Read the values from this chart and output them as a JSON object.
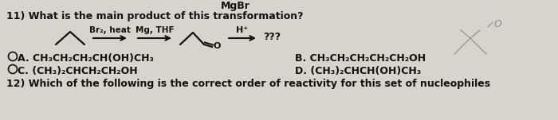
{
  "bg_color": "#d8d4cc",
  "text_color": "#111111",
  "title_line": "11) What is the main product of this transformation?",
  "top_label": "MgBr",
  "reaction_label1": "Br₂, heat",
  "reaction_label2": "Mg, THF",
  "reaction_h": "H⁺",
  "reaction_qqq": "???",
  "answer_A": "A. CH₃CH₂CH₂CH(OH)CH₃",
  "answer_B": "B. CH₃CH₂CH₂CH₂CH₂OH",
  "answer_C": "C. (CH₃)₂CHCH₂CH₂OH",
  "answer_D": "D. (CH₃)₂CHCH(OH)CH₃",
  "bottom_line": "12) Which of the following is the correct order of reactivity for this set of nucleophiles",
  "figw": 7.0,
  "figh": 1.51,
  "dpi": 100
}
